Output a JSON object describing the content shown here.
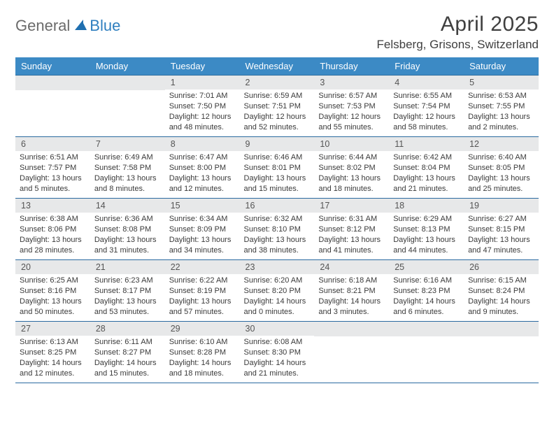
{
  "logo": {
    "text1": "General",
    "text2": "Blue"
  },
  "title": "April 2025",
  "location": "Felsberg, Grisons, Switzerland",
  "colors": {
    "header_bg": "#3c8ac5",
    "header_text": "#ffffff",
    "daynum_bg": "#e7e8e9",
    "border": "#2a6aa0",
    "logo_accent": "#2f7fbf",
    "text": "#404040"
  },
  "weekdays": [
    "Sunday",
    "Monday",
    "Tuesday",
    "Wednesday",
    "Thursday",
    "Friday",
    "Saturday"
  ],
  "cells": [
    {
      "day": "",
      "lines": []
    },
    {
      "day": "",
      "lines": []
    },
    {
      "day": "1",
      "lines": [
        "Sunrise: 7:01 AM",
        "Sunset: 7:50 PM",
        "Daylight: 12 hours",
        "and 48 minutes."
      ]
    },
    {
      "day": "2",
      "lines": [
        "Sunrise: 6:59 AM",
        "Sunset: 7:51 PM",
        "Daylight: 12 hours",
        "and 52 minutes."
      ]
    },
    {
      "day": "3",
      "lines": [
        "Sunrise: 6:57 AM",
        "Sunset: 7:53 PM",
        "Daylight: 12 hours",
        "and 55 minutes."
      ]
    },
    {
      "day": "4",
      "lines": [
        "Sunrise: 6:55 AM",
        "Sunset: 7:54 PM",
        "Daylight: 12 hours",
        "and 58 minutes."
      ]
    },
    {
      "day": "5",
      "lines": [
        "Sunrise: 6:53 AM",
        "Sunset: 7:55 PM",
        "Daylight: 13 hours",
        "and 2 minutes."
      ]
    },
    {
      "day": "6",
      "lines": [
        "Sunrise: 6:51 AM",
        "Sunset: 7:57 PM",
        "Daylight: 13 hours",
        "and 5 minutes."
      ]
    },
    {
      "day": "7",
      "lines": [
        "Sunrise: 6:49 AM",
        "Sunset: 7:58 PM",
        "Daylight: 13 hours",
        "and 8 minutes."
      ]
    },
    {
      "day": "8",
      "lines": [
        "Sunrise: 6:47 AM",
        "Sunset: 8:00 PM",
        "Daylight: 13 hours",
        "and 12 minutes."
      ]
    },
    {
      "day": "9",
      "lines": [
        "Sunrise: 6:46 AM",
        "Sunset: 8:01 PM",
        "Daylight: 13 hours",
        "and 15 minutes."
      ]
    },
    {
      "day": "10",
      "lines": [
        "Sunrise: 6:44 AM",
        "Sunset: 8:02 PM",
        "Daylight: 13 hours",
        "and 18 minutes."
      ]
    },
    {
      "day": "11",
      "lines": [
        "Sunrise: 6:42 AM",
        "Sunset: 8:04 PM",
        "Daylight: 13 hours",
        "and 21 minutes."
      ]
    },
    {
      "day": "12",
      "lines": [
        "Sunrise: 6:40 AM",
        "Sunset: 8:05 PM",
        "Daylight: 13 hours",
        "and 25 minutes."
      ]
    },
    {
      "day": "13",
      "lines": [
        "Sunrise: 6:38 AM",
        "Sunset: 8:06 PM",
        "Daylight: 13 hours",
        "and 28 minutes."
      ]
    },
    {
      "day": "14",
      "lines": [
        "Sunrise: 6:36 AM",
        "Sunset: 8:08 PM",
        "Daylight: 13 hours",
        "and 31 minutes."
      ]
    },
    {
      "day": "15",
      "lines": [
        "Sunrise: 6:34 AM",
        "Sunset: 8:09 PM",
        "Daylight: 13 hours",
        "and 34 minutes."
      ]
    },
    {
      "day": "16",
      "lines": [
        "Sunrise: 6:32 AM",
        "Sunset: 8:10 PM",
        "Daylight: 13 hours",
        "and 38 minutes."
      ]
    },
    {
      "day": "17",
      "lines": [
        "Sunrise: 6:31 AM",
        "Sunset: 8:12 PM",
        "Daylight: 13 hours",
        "and 41 minutes."
      ]
    },
    {
      "day": "18",
      "lines": [
        "Sunrise: 6:29 AM",
        "Sunset: 8:13 PM",
        "Daylight: 13 hours",
        "and 44 minutes."
      ]
    },
    {
      "day": "19",
      "lines": [
        "Sunrise: 6:27 AM",
        "Sunset: 8:15 PM",
        "Daylight: 13 hours",
        "and 47 minutes."
      ]
    },
    {
      "day": "20",
      "lines": [
        "Sunrise: 6:25 AM",
        "Sunset: 8:16 PM",
        "Daylight: 13 hours",
        "and 50 minutes."
      ]
    },
    {
      "day": "21",
      "lines": [
        "Sunrise: 6:23 AM",
        "Sunset: 8:17 PM",
        "Daylight: 13 hours",
        "and 53 minutes."
      ]
    },
    {
      "day": "22",
      "lines": [
        "Sunrise: 6:22 AM",
        "Sunset: 8:19 PM",
        "Daylight: 13 hours",
        "and 57 minutes."
      ]
    },
    {
      "day": "23",
      "lines": [
        "Sunrise: 6:20 AM",
        "Sunset: 8:20 PM",
        "Daylight: 14 hours",
        "and 0 minutes."
      ]
    },
    {
      "day": "24",
      "lines": [
        "Sunrise: 6:18 AM",
        "Sunset: 8:21 PM",
        "Daylight: 14 hours",
        "and 3 minutes."
      ]
    },
    {
      "day": "25",
      "lines": [
        "Sunrise: 6:16 AM",
        "Sunset: 8:23 PM",
        "Daylight: 14 hours",
        "and 6 minutes."
      ]
    },
    {
      "day": "26",
      "lines": [
        "Sunrise: 6:15 AM",
        "Sunset: 8:24 PM",
        "Daylight: 14 hours",
        "and 9 minutes."
      ]
    },
    {
      "day": "27",
      "lines": [
        "Sunrise: 6:13 AM",
        "Sunset: 8:25 PM",
        "Daylight: 14 hours",
        "and 12 minutes."
      ]
    },
    {
      "day": "28",
      "lines": [
        "Sunrise: 6:11 AM",
        "Sunset: 8:27 PM",
        "Daylight: 14 hours",
        "and 15 minutes."
      ]
    },
    {
      "day": "29",
      "lines": [
        "Sunrise: 6:10 AM",
        "Sunset: 8:28 PM",
        "Daylight: 14 hours",
        "and 18 minutes."
      ]
    },
    {
      "day": "30",
      "lines": [
        "Sunrise: 6:08 AM",
        "Sunset: 8:30 PM",
        "Daylight: 14 hours",
        "and 21 minutes."
      ]
    },
    {
      "day": "",
      "lines": []
    },
    {
      "day": "",
      "lines": []
    },
    {
      "day": "",
      "lines": []
    }
  ]
}
